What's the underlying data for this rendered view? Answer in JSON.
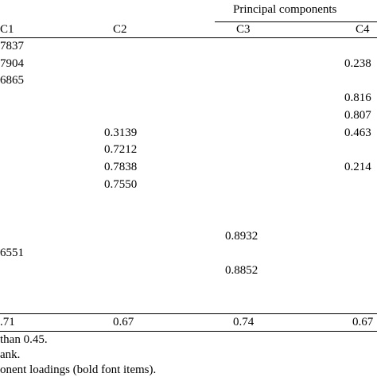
{
  "table": {
    "spanner": "Principal components",
    "headers": [
      "C1",
      "C2",
      "C3",
      "C4"
    ],
    "rows": [
      [
        "7837",
        null,
        null,
        null
      ],
      [
        "7904",
        null,
        null,
        "0.238"
      ],
      [
        "6865",
        null,
        null,
        null
      ],
      [
        null,
        null,
        null,
        "0.816"
      ],
      [
        null,
        null,
        null,
        "0.807"
      ],
      [
        null,
        "0.3139",
        null,
        "0.463"
      ],
      [
        null,
        "0.7212",
        null,
        null
      ],
      [
        null,
        "0.7838",
        null,
        "0.214"
      ],
      [
        null,
        "0.7550",
        null,
        null
      ],
      [
        null,
        null,
        null,
        null
      ],
      [
        null,
        null,
        null,
        null
      ],
      [
        null,
        null,
        "0.8932",
        null
      ],
      [
        "6551",
        null,
        null,
        null
      ],
      [
        null,
        null,
        "0.8852",
        null
      ]
    ],
    "totals": [
      ".71",
      "0.67",
      "0.74",
      "0.67"
    ],
    "footnotes": [
      "than 0.45.",
      "ank.",
      "onent loadings (bold font items)."
    ]
  }
}
